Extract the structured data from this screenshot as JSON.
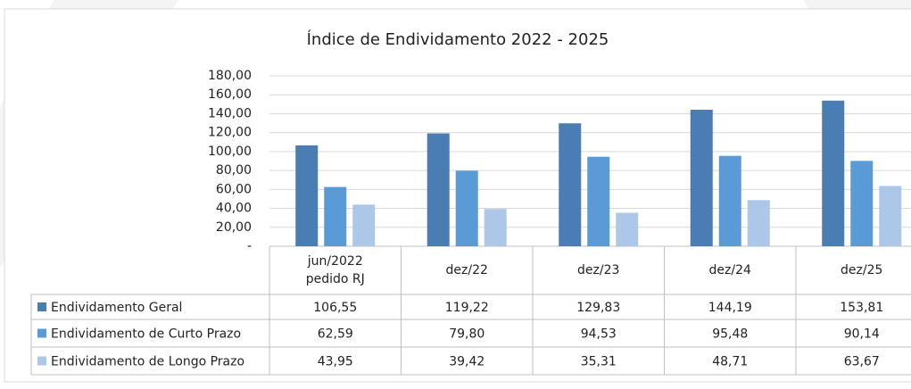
{
  "chart_data": {
    "type": "bar",
    "title": "Índice de Endividamento 2022 - 2025",
    "categories": [
      "jun/2022 pedido RJ",
      "dez/22",
      "dez/23",
      "dez/24",
      "dez/25"
    ],
    "series": [
      {
        "name": "Endividamento Geral",
        "color": "#4a7db4",
        "values": [
          106.55,
          119.22,
          129.83,
          144.19,
          153.81
        ],
        "value_labels": [
          "106,55",
          "119,22",
          "129,83",
          "144,19",
          "153,81"
        ]
      },
      {
        "name": "Endividamento de Curto Prazo",
        "color": "#5b9bd5",
        "values": [
          62.59,
          79.8,
          94.53,
          95.48,
          90.14
        ],
        "value_labels": [
          "62,59",
          "79,80",
          "94,53",
          "95,48",
          "90,14"
        ]
      },
      {
        "name": "Endividamento de Longo Prazo",
        "color": "#adc7e8",
        "values": [
          43.95,
          39.42,
          35.31,
          48.71,
          63.67
        ],
        "value_labels": [
          "43,95",
          "39,42",
          "35,31",
          "48,71",
          "63,67"
        ]
      }
    ],
    "ylim": [
      0,
      180
    ],
    "yticks": [
      {
        "value": 0,
        "label": "-"
      },
      {
        "value": 20,
        "label": "20,00"
      },
      {
        "value": 40,
        "label": "40,00"
      },
      {
        "value": 60,
        "label": "60,00"
      },
      {
        "value": 80,
        "label": "80,00"
      },
      {
        "value": 100,
        "label": "100,00"
      },
      {
        "value": 120,
        "label": "120,00"
      },
      {
        "value": 140,
        "label": "140,00"
      },
      {
        "value": 160,
        "label": "160,00"
      },
      {
        "value": 180,
        "label": "180,00"
      }
    ],
    "grid": true
  }
}
